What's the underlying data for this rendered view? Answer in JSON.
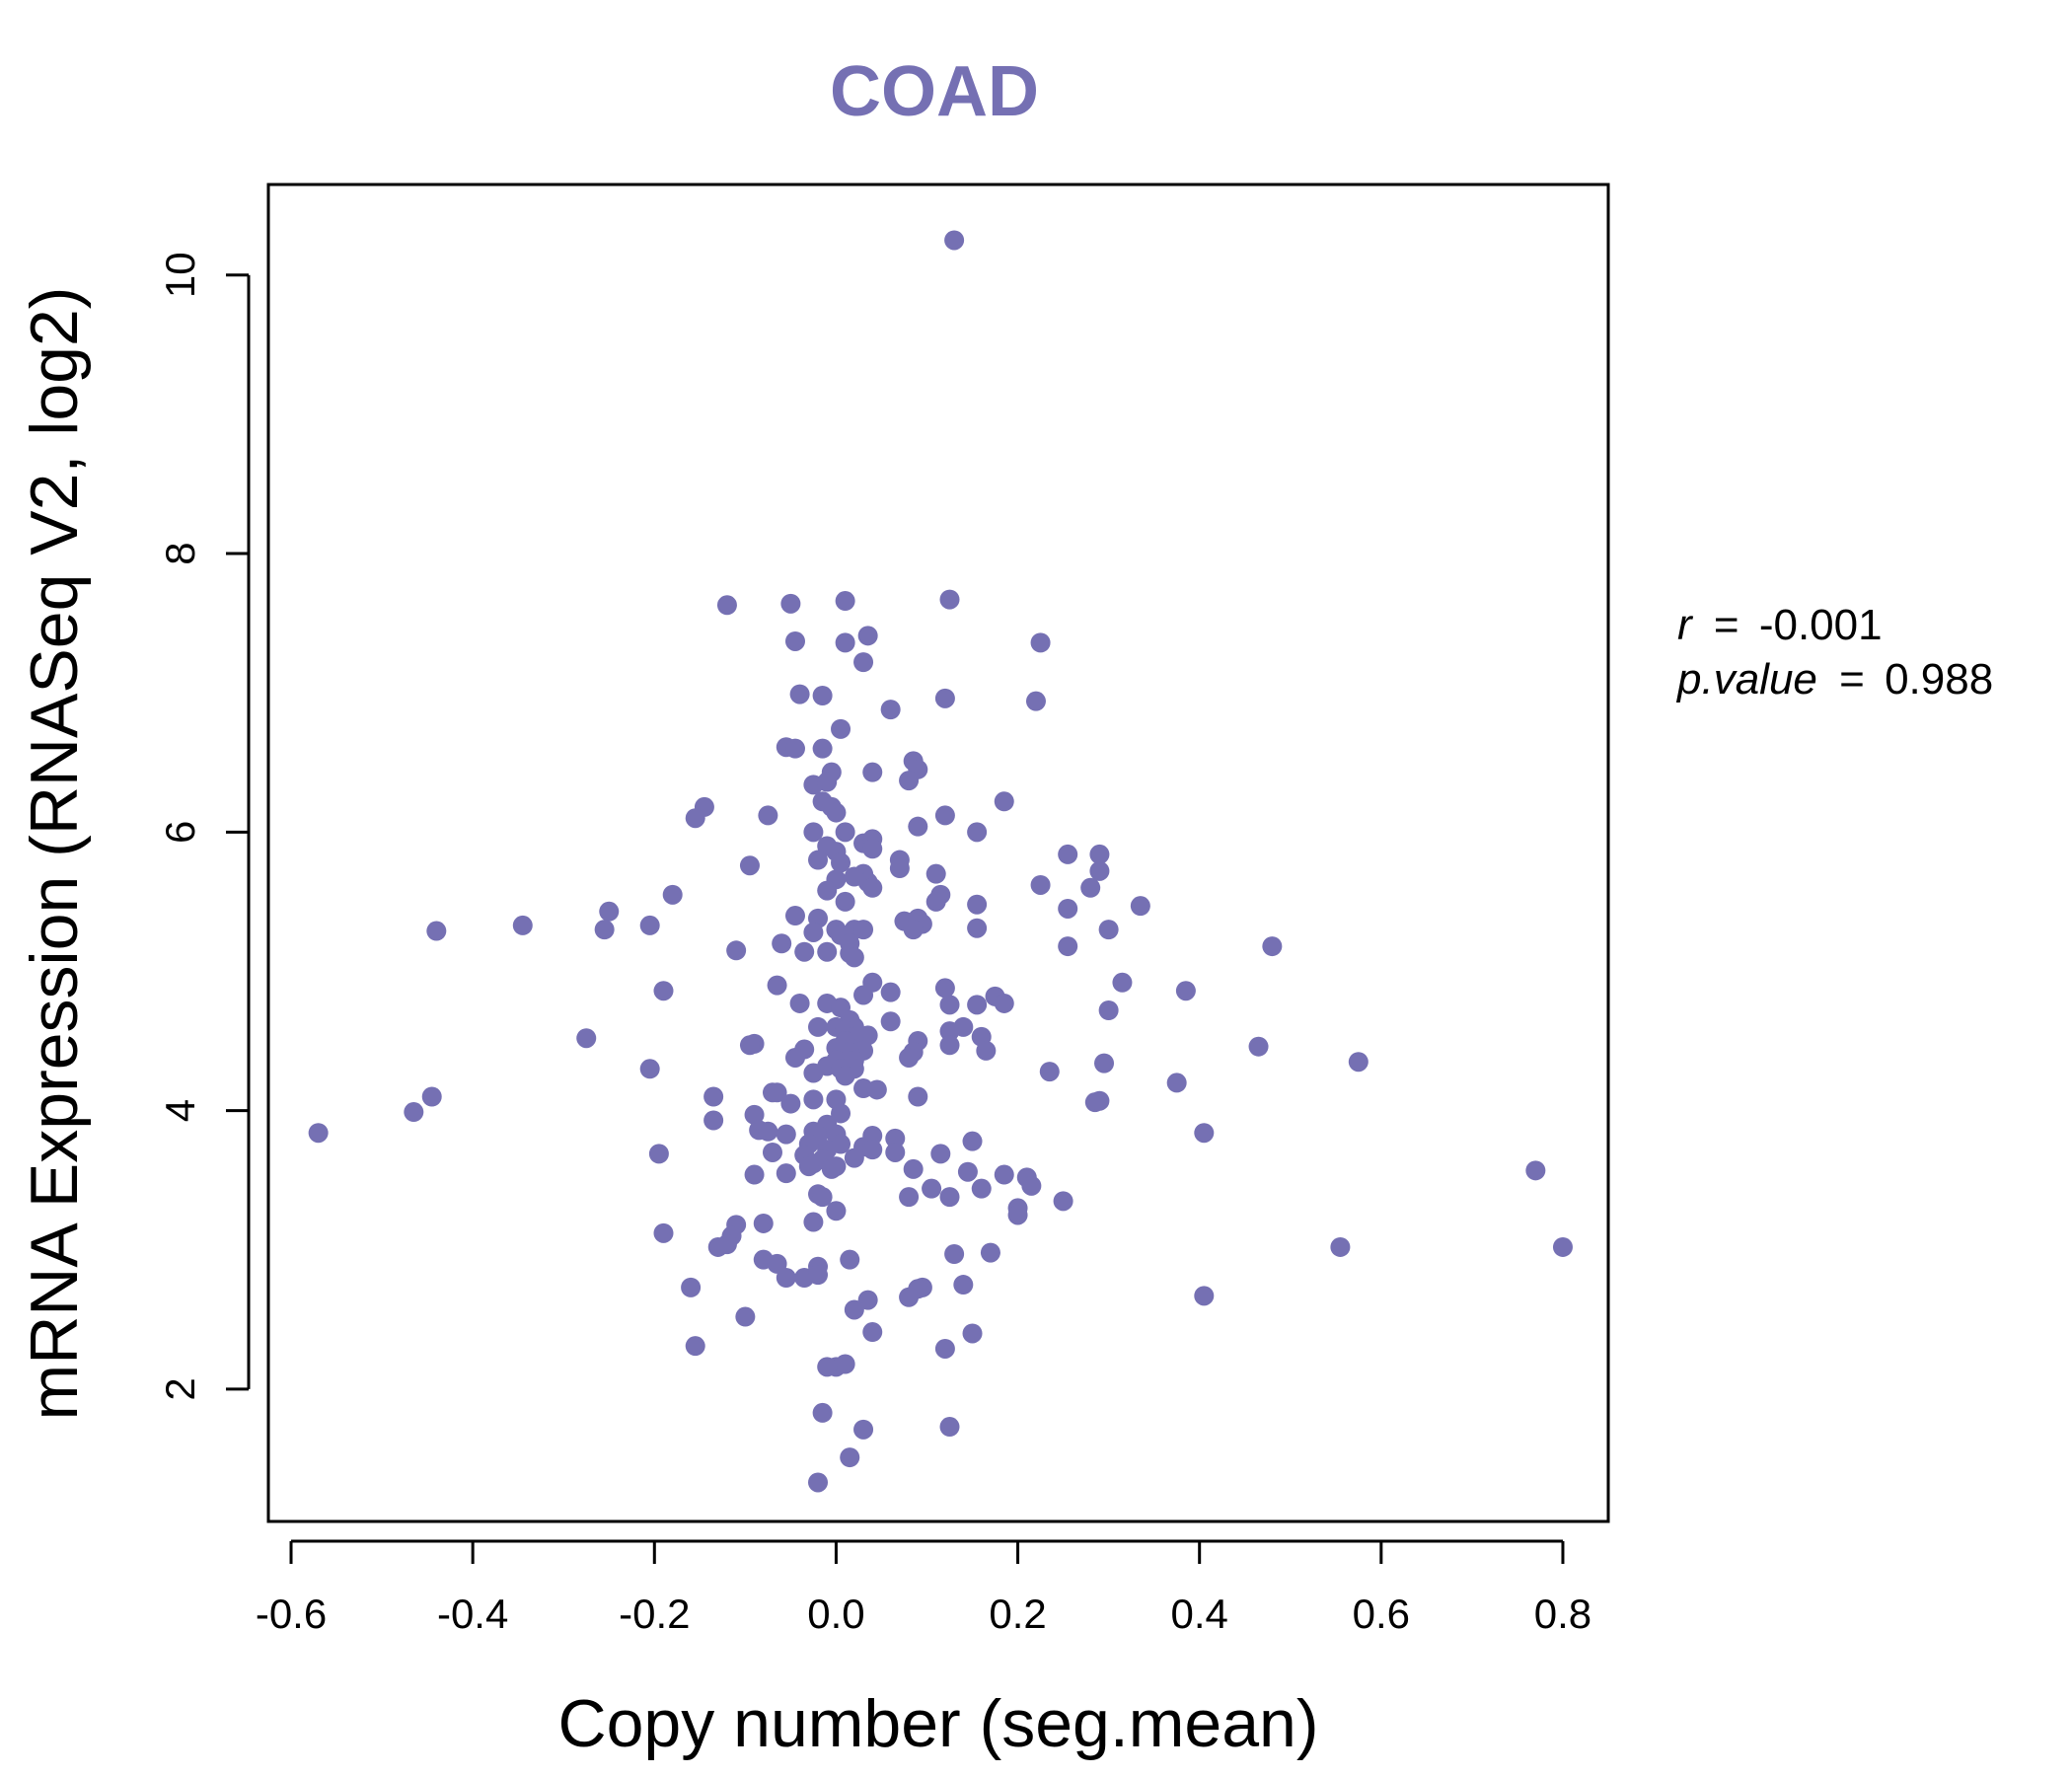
{
  "colors": {
    "points": "#7570B3",
    "title": "#7570B3",
    "frame": "#000000"
  },
  "chart_data": {
    "type": "scatter",
    "title": "COAD",
    "xlabel": "Copy number (seg.mean)",
    "ylabel": "mRNA Expression (RNASeq V2, log2)",
    "xlim": [
      -0.625,
      0.85
    ],
    "ylim": [
      1.05,
      10.65
    ],
    "xticks": [
      -0.6,
      -0.4,
      -0.2,
      0.0,
      0.2,
      0.4,
      0.6,
      0.8
    ],
    "xtick_labels": [
      "-0.6",
      "-0.4",
      "-0.2",
      "0.0",
      "0.2",
      "0.4",
      "0.6",
      "0.8"
    ],
    "yticks": [
      2,
      4,
      6,
      8,
      10
    ],
    "ytick_labels": [
      "2",
      "4",
      "6",
      "8",
      "10"
    ],
    "stats": {
      "r_symbol": "r",
      "r_value": "-0.001",
      "p_symbol": "p.value",
      "p_value": "0.988",
      "eq": "="
    },
    "points": [
      [
        0.13,
        10.25
      ],
      [
        -0.12,
        7.63
      ],
      [
        -0.05,
        7.64
      ],
      [
        0.01,
        7.66
      ],
      [
        0.125,
        7.67
      ],
      [
        0.01,
        7.36
      ],
      [
        0.035,
        7.41
      ],
      [
        -0.045,
        7.37
      ],
      [
        0.03,
        7.22
      ],
      [
        0.225,
        7.36
      ],
      [
        -0.04,
        6.99
      ],
      [
        -0.015,
        6.98
      ],
      [
        0.12,
        6.96
      ],
      [
        0.22,
        6.94
      ],
      [
        0.06,
        6.88
      ],
      [
        0.005,
        6.74
      ],
      [
        -0.055,
        6.61
      ],
      [
        -0.045,
        6.6
      ],
      [
        -0.015,
        6.6
      ],
      [
        0.085,
        6.51
      ],
      [
        0.09,
        6.45
      ],
      [
        0.04,
        6.43
      ],
      [
        -0.005,
        6.43
      ],
      [
        0.08,
        6.37
      ],
      [
        -0.025,
        6.34
      ],
      [
        -0.01,
        6.36
      ],
      [
        0.185,
        6.22
      ],
      [
        -0.015,
        6.22
      ],
      [
        -0.005,
        6.18
      ],
      [
        0.0,
        6.14
      ],
      [
        -0.145,
        6.18
      ],
      [
        -0.155,
        6.1
      ],
      [
        -0.075,
        6.12
      ],
      [
        0.12,
        6.12
      ],
      [
        0.09,
        6.04
      ],
      [
        0.155,
        6.0
      ],
      [
        -0.025,
        6.0
      ],
      [
        0.01,
        6.0
      ],
      [
        0.03,
        5.92
      ],
      [
        0.04,
        5.95
      ],
      [
        -0.01,
        5.9
      ],
      [
        0.0,
        5.86
      ],
      [
        0.04,
        5.88
      ],
      [
        0.255,
        5.84
      ],
      [
        0.29,
        5.84
      ],
      [
        -0.02,
        5.8
      ],
      [
        0.005,
        5.78
      ],
      [
        0.07,
        5.8
      ],
      [
        -0.095,
        5.76
      ],
      [
        0.07,
        5.74
      ],
      [
        0.03,
        5.7
      ],
      [
        0.11,
        5.7
      ],
      [
        0.02,
        5.68
      ],
      [
        0.29,
        5.72
      ],
      [
        0.0,
        5.66
      ],
      [
        0.035,
        5.64
      ],
      [
        0.04,
        5.6
      ],
      [
        -0.01,
        5.58
      ],
      [
        0.225,
        5.62
      ],
      [
        0.28,
        5.6
      ],
      [
        -0.18,
        5.55
      ],
      [
        0.115,
        5.55
      ],
      [
        0.11,
        5.5
      ],
      [
        0.155,
        5.48
      ],
      [
        0.01,
        5.5
      ],
      [
        0.335,
        5.47
      ],
      [
        0.255,
        5.45
      ],
      [
        -0.25,
        5.43
      ],
      [
        -0.045,
        5.4
      ],
      [
        -0.02,
        5.38
      ],
      [
        0.075,
        5.36
      ],
      [
        0.09,
        5.38
      ],
      [
        0.095,
        5.34
      ],
      [
        0.085,
        5.3
      ],
      [
        -0.345,
        5.33
      ],
      [
        -0.205,
        5.33
      ],
      [
        -0.255,
        5.3
      ],
      [
        -0.44,
        5.29
      ],
      [
        -0.025,
        5.28
      ],
      [
        0.0,
        5.3
      ],
      [
        0.02,
        5.3
      ],
      [
        0.03,
        5.3
      ],
      [
        0.3,
        5.3
      ],
      [
        0.155,
        5.31
      ],
      [
        0.005,
        5.26
      ],
      [
        -0.06,
        5.2
      ],
      [
        0.015,
        5.2
      ],
      [
        0.255,
        5.18
      ],
      [
        0.48,
        5.18
      ],
      [
        -0.11,
        5.15
      ],
      [
        -0.035,
        5.14
      ],
      [
        -0.01,
        5.14
      ],
      [
        0.015,
        5.13
      ],
      [
        0.02,
        5.1
      ],
      [
        0.315,
        4.92
      ],
      [
        0.04,
        4.92
      ],
      [
        -0.065,
        4.9
      ],
      [
        0.12,
        4.88
      ],
      [
        0.385,
        4.86
      ],
      [
        -0.19,
        4.86
      ],
      [
        0.06,
        4.85
      ],
      [
        0.03,
        4.83
      ],
      [
        0.175,
        4.82
      ],
      [
        0.185,
        4.77
      ],
      [
        0.125,
        4.76
      ],
      [
        0.155,
        4.76
      ],
      [
        -0.04,
        4.77
      ],
      [
        -0.01,
        4.77
      ],
      [
        0.005,
        4.74
      ],
      [
        0.3,
        4.72
      ],
      [
        0.06,
        4.64
      ],
      [
        0.015,
        4.65
      ],
      [
        0.0,
        4.6
      ],
      [
        0.02,
        4.6
      ],
      [
        -0.02,
        4.6
      ],
      [
        0.14,
        4.6
      ],
      [
        0.125,
        4.57
      ],
      [
        0.01,
        4.58
      ],
      [
        0.035,
        4.54
      ],
      [
        0.02,
        4.53
      ],
      [
        0.16,
        4.53
      ],
      [
        -0.275,
        4.52
      ],
      [
        0.09,
        4.5
      ],
      [
        0.01,
        4.5
      ],
      [
        -0.09,
        4.48
      ],
      [
        -0.095,
        4.47
      ],
      [
        0.125,
        4.47
      ],
      [
        0.465,
        4.46
      ],
      [
        0.0,
        4.45
      ],
      [
        0.03,
        4.43
      ],
      [
        -0.035,
        4.44
      ],
      [
        0.165,
        4.43
      ],
      [
        0.015,
        4.42
      ],
      [
        0.085,
        4.42
      ],
      [
        0.08,
        4.38
      ],
      [
        -0.045,
        4.38
      ],
      [
        0.0,
        4.36
      ],
      [
        0.02,
        4.36
      ],
      [
        0.575,
        4.35
      ],
      [
        0.295,
        4.34
      ],
      [
        -0.01,
        4.32
      ],
      [
        0.005,
        4.3
      ],
      [
        0.02,
        4.3
      ],
      [
        -0.205,
        4.3
      ],
      [
        0.235,
        4.28
      ],
      [
        -0.025,
        4.27
      ],
      [
        0.01,
        4.25
      ],
      [
        0.375,
        4.2
      ],
      [
        0.03,
        4.16
      ],
      [
        0.045,
        4.15
      ],
      [
        -0.07,
        4.13
      ],
      [
        -0.065,
        4.13
      ],
      [
        -0.445,
        4.1
      ],
      [
        -0.135,
        4.1
      ],
      [
        0.09,
        4.1
      ],
      [
        0.0,
        4.08
      ],
      [
        -0.025,
        4.08
      ],
      [
        0.285,
        4.06
      ],
      [
        0.29,
        4.07
      ],
      [
        -0.05,
        4.05
      ],
      [
        -0.465,
        3.99
      ],
      [
        -0.09,
        3.97
      ],
      [
        0.005,
        3.98
      ],
      [
        -0.135,
        3.93
      ],
      [
        -0.01,
        3.9
      ],
      [
        -0.085,
        3.86
      ],
      [
        -0.075,
        3.85
      ],
      [
        -0.025,
        3.85
      ],
      [
        -0.02,
        3.82
      ],
      [
        0.0,
        3.83
      ],
      [
        -0.055,
        3.83
      ],
      [
        0.04,
        3.82
      ],
      [
        -0.57,
        3.84
      ],
      [
        0.405,
        3.84
      ],
      [
        0.065,
        3.8
      ],
      [
        0.15,
        3.78
      ],
      [
        -0.03,
        3.76
      ],
      [
        0.005,
        3.76
      ],
      [
        0.03,
        3.74
      ],
      [
        -0.01,
        3.72
      ],
      [
        0.04,
        3.72
      ],
      [
        0.065,
        3.7
      ],
      [
        -0.07,
        3.7
      ],
      [
        -0.195,
        3.69
      ],
      [
        0.115,
        3.69
      ],
      [
        -0.035,
        3.68
      ],
      [
        -0.015,
        3.65
      ],
      [
        0.02,
        3.66
      ],
      [
        -0.025,
        3.62
      ],
      [
        0.0,
        3.6
      ],
      [
        -0.03,
        3.6
      ],
      [
        -0.005,
        3.58
      ],
      [
        0.085,
        3.58
      ],
      [
        0.145,
        3.56
      ],
      [
        0.77,
        3.57
      ],
      [
        -0.055,
        3.55
      ],
      [
        -0.09,
        3.54
      ],
      [
        0.185,
        3.54
      ],
      [
        0.21,
        3.52
      ],
      [
        0.215,
        3.46
      ],
      [
        0.16,
        3.44
      ],
      [
        0.105,
        3.44
      ],
      [
        0.08,
        3.38
      ],
      [
        0.125,
        3.38
      ],
      [
        -0.02,
        3.4
      ],
      [
        -0.015,
        3.38
      ],
      [
        0.25,
        3.35
      ],
      [
        0.2,
        3.3
      ],
      [
        0.0,
        3.28
      ],
      [
        0.2,
        3.25
      ],
      [
        -0.025,
        3.2
      ],
      [
        -0.08,
        3.19
      ],
      [
        -0.11,
        3.18
      ],
      [
        -0.19,
        3.12
      ],
      [
        -0.115,
        3.1
      ],
      [
        -0.12,
        3.04
      ],
      [
        -0.13,
        3.02
      ],
      [
        0.555,
        3.02
      ],
      [
        0.8,
        3.02
      ],
      [
        0.13,
        2.97
      ],
      [
        0.17,
        2.98
      ],
      [
        0.015,
        2.93
      ],
      [
        -0.08,
        2.93
      ],
      [
        -0.065,
        2.9
      ],
      [
        -0.02,
        2.88
      ],
      [
        -0.055,
        2.8
      ],
      [
        -0.035,
        2.8
      ],
      [
        -0.02,
        2.82
      ],
      [
        0.14,
        2.75
      ],
      [
        0.095,
        2.73
      ],
      [
        0.09,
        2.72
      ],
      [
        -0.16,
        2.73
      ],
      [
        0.08,
        2.66
      ],
      [
        0.035,
        2.64
      ],
      [
        0.405,
        2.67
      ],
      [
        0.02,
        2.57
      ],
      [
        -0.1,
        2.52
      ],
      [
        0.04,
        2.41
      ],
      [
        0.15,
        2.4
      ],
      [
        -0.155,
        2.31
      ],
      [
        0.12,
        2.29
      ],
      [
        0.01,
        2.18
      ],
      [
        0.0,
        2.16
      ],
      [
        -0.01,
        2.16
      ],
      [
        -0.015,
        1.83
      ],
      [
        0.125,
        1.73
      ],
      [
        0.03,
        1.71
      ],
      [
        0.015,
        1.51
      ],
      [
        -0.02,
        1.33
      ]
    ]
  }
}
